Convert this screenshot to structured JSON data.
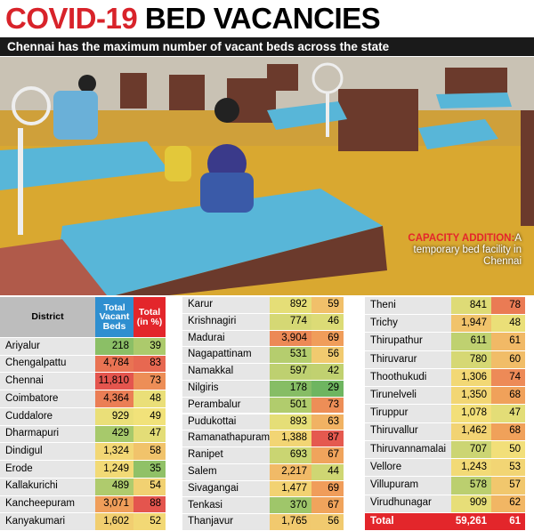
{
  "header": {
    "title_red": "COVID-19",
    "title_black": "BED VACANCIES",
    "subtitle": "Chennai has the maximum number of vacant beds across the state"
  },
  "caption": {
    "lead": "CAPACITY ADDITION:",
    "text": "A temporary bed facility in Chennai"
  },
  "table": {
    "columns": [
      "District",
      "Total Vacant Beds",
      "Total (in %)"
    ],
    "rows": [
      [
        "Ariyalur",
        "218",
        "39"
      ],
      [
        "Chengalpattu",
        "4,784",
        "83"
      ],
      [
        "Chennai",
        "11,810",
        "73"
      ],
      [
        "Coimbatore",
        "4,364",
        "48"
      ],
      [
        "Cuddalore",
        "929",
        "49"
      ],
      [
        "Dharmapuri",
        "429",
        "47"
      ],
      [
        "Dindigul",
        "1,324",
        "58"
      ],
      [
        "Erode",
        "1,249",
        "35"
      ],
      [
        "Kallakurichi",
        "489",
        "54"
      ],
      [
        "Kancheepuram",
        "3,071",
        "88"
      ],
      [
        "Kanyakumari",
        "1,602",
        "52"
      ],
      [
        "Karur",
        "892",
        "59"
      ],
      [
        "Krishnagiri",
        "774",
        "46"
      ],
      [
        "Madurai",
        "3,904",
        "69"
      ],
      [
        "Nagapattinam",
        "531",
        "56"
      ],
      [
        "Namakkal",
        "597",
        "42"
      ],
      [
        "Nilgiris",
        "178",
        "29"
      ],
      [
        "Perambalur",
        "501",
        "73"
      ],
      [
        "Pudukottai",
        "893",
        "63"
      ],
      [
        "Ramanathapuram",
        "1,388",
        "87"
      ],
      [
        "Ranipet",
        "693",
        "67"
      ],
      [
        "Salem",
        "2,217",
        "44"
      ],
      [
        "Sivagangai",
        "1,477",
        "69"
      ],
      [
        "Tenkasi",
        "370",
        "67"
      ],
      [
        "Thanjavur",
        "1,765",
        "56"
      ],
      [
        "Theni",
        "841",
        "78"
      ],
      [
        "Trichy",
        "1,947",
        "48"
      ],
      [
        "Thirupathur",
        "611",
        "61"
      ],
      [
        "Thiruvarur",
        "780",
        "60"
      ],
      [
        "Thoothukudi",
        "1,306",
        "74"
      ],
      [
        "Tirunelveli",
        "1,350",
        "68"
      ],
      [
        "Tiruppur",
        "1,078",
        "47"
      ],
      [
        "Thiruvallur",
        "1,462",
        "68"
      ],
      [
        "Thiruvannamalai",
        "707",
        "50"
      ],
      [
        "Vellore",
        "1,243",
        "53"
      ],
      [
        "Villupuram",
        "578",
        "57"
      ],
      [
        "Virudhunagar",
        "909",
        "62"
      ],
      [
        "Total",
        "59,261",
        "61"
      ]
    ]
  }
}
